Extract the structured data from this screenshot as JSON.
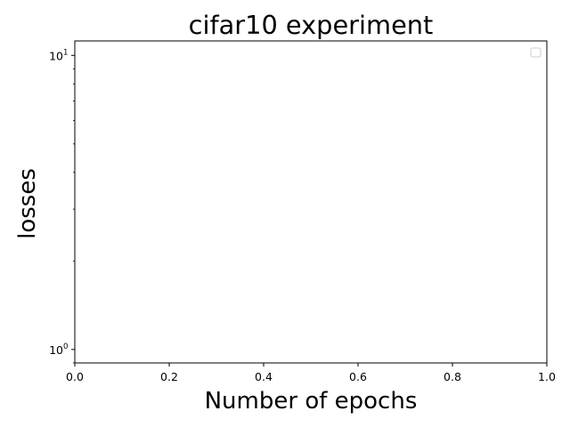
{
  "chart_data": {
    "type": "line",
    "title": "cifar10 experiment",
    "xlabel": "Number of epochs",
    "ylabel": "losses",
    "xlim": [
      0.0,
      1.0
    ],
    "ylim": [
      0.9,
      11.2
    ],
    "yscale": "log",
    "x_ticks": [
      "0.0",
      "0.2",
      "0.4",
      "0.6",
      "0.8",
      "1.0"
    ],
    "y_ticks": [
      {
        "base": "10",
        "exp": "1",
        "value": 10
      },
      {
        "base": "10",
        "exp": "0",
        "value": 1
      }
    ],
    "series": [],
    "legend": {
      "location": "top-right",
      "entries": []
    },
    "grid": false
  }
}
